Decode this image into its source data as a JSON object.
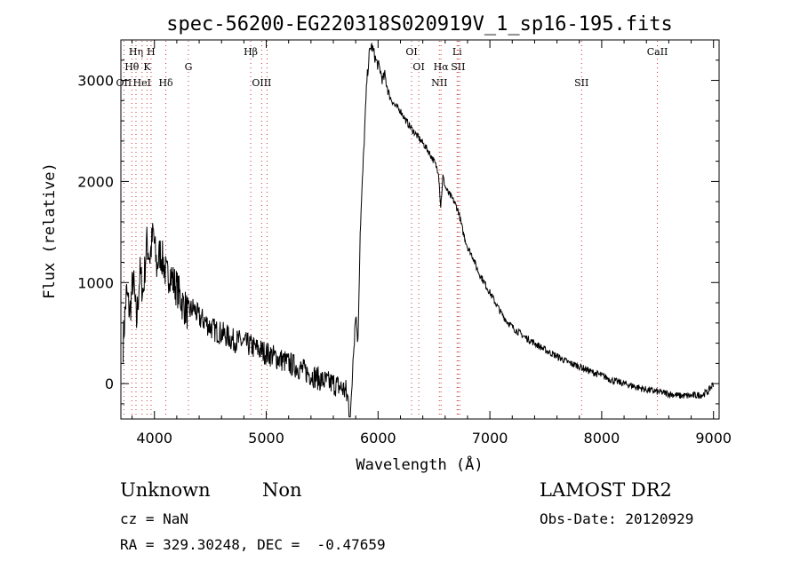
{
  "chart_data": {
    "type": "line",
    "title": "spec-56200-EG220318S020919V_1_sp16-195.fits",
    "xlabel": "Wavelength (Å)",
    "ylabel": "Flux (relative)",
    "xlim": [
      3700,
      9050
    ],
    "ylim": [
      -350,
      3400
    ],
    "xticks": [
      4000,
      5000,
      6000,
      7000,
      8000,
      9000
    ],
    "yticks": [
      0,
      1000,
      2000,
      3000
    ],
    "grid": false,
    "line_color": "#000000",
    "marker_color": "#cc3333",
    "series": [
      {
        "x": [
          3720,
          3750,
          3780,
          3810,
          3840,
          3870,
          3900,
          3930,
          3960,
          3990,
          4020,
          4050,
          4080,
          4110,
          4140,
          4170,
          4200,
          4250,
          4300,
          4350,
          4400,
          4450,
          4500,
          4550,
          4600,
          4650,
          4700,
          4750,
          4800,
          4850,
          4900,
          4950,
          5000,
          5050,
          5100,
          5150,
          5200,
          5250,
          5300,
          5350,
          5400,
          5450,
          5500,
          5550,
          5600,
          5650,
          5700,
          5730,
          5750,
          5760,
          5780,
          5800,
          5820,
          5840,
          5860,
          5880,
          5900,
          5920,
          5940,
          5960,
          5980,
          6000,
          6020,
          6040,
          6060,
          6080,
          6100,
          6150,
          6200,
          6250,
          6300,
          6350,
          6400,
          6450,
          6500,
          6540,
          6560,
          6580,
          6600,
          6620,
          6650,
          6680,
          6720,
          6760,
          6800,
          6850,
          6880,
          6900,
          6950,
          7000,
          7050,
          7100,
          7150,
          7200,
          7300,
          7400,
          7500,
          7600,
          7700,
          7800,
          7900,
          8000,
          8100,
          8200,
          8300,
          8400,
          8500,
          8600,
          8700,
          8800,
          8900,
          8950,
          9000
        ],
        "y": [
          400,
          900,
          700,
          1050,
          600,
          1100,
          900,
          1400,
          1250,
          1500,
          1150,
          1300,
          1200,
          1050,
          1100,
          1000,
          950,
          800,
          700,
          750,
          650,
          620,
          560,
          520,
          500,
          470,
          430,
          420,
          400,
          380,
          350,
          330,
          300,
          280,
          250,
          230,
          200,
          180,
          150,
          120,
          90,
          60,
          30,
          10,
          0,
          -30,
          -60,
          -150,
          -300,
          -250,
          400,
          700,
          400,
          1500,
          2000,
          2500,
          3000,
          3250,
          3350,
          3280,
          3200,
          3150,
          3100,
          3000,
          3050,
          2950,
          2850,
          2750,
          2700,
          2600,
          2520,
          2450,
          2380,
          2300,
          2200,
          2100,
          1750,
          2050,
          1950,
          1900,
          1850,
          1800,
          1700,
          1500,
          1350,
          1250,
          1150,
          1100,
          1000,
          900,
          800,
          700,
          620,
          560,
          470,
          400,
          330,
          270,
          210,
          170,
          120,
          80,
          30,
          0,
          -30,
          -60,
          -80,
          -100,
          -120,
          -120,
          -110,
          -80,
          0
        ]
      }
    ],
    "line_markers": [
      {
        "x": 3727,
        "label": "OII",
        "row": 3
      },
      {
        "x": 3798,
        "label": "Hθ",
        "row": 2
      },
      {
        "x": 3835,
        "label": "Hη",
        "row": 1
      },
      {
        "x": 3889,
        "label": "HeI",
        "row": 3
      },
      {
        "x": 3934,
        "label": "K",
        "row": 2
      },
      {
        "x": 3970,
        "label": "H",
        "row": 1
      },
      {
        "x": 4102,
        "label": "Hδ",
        "row": 3
      },
      {
        "x": 4304,
        "label": "G",
        "row": 2
      },
      {
        "x": 4861,
        "label": "Hβ",
        "row": 1
      },
      {
        "x": 4959,
        "label": "OIII",
        "row": 3
      },
      {
        "x": 5007,
        "label": "",
        "row": 3
      },
      {
        "x": 6300,
        "label": "OI",
        "row": 1
      },
      {
        "x": 6364,
        "label": "OI",
        "row": 2
      },
      {
        "x": 6548,
        "label": "NII",
        "row": 3
      },
      {
        "x": 6563,
        "label": "Hα",
        "row": 2
      },
      {
        "x": 6707,
        "label": "Li",
        "row": 1
      },
      {
        "x": 6716,
        "label": "SII",
        "row": 2
      },
      {
        "x": 6731,
        "label": "",
        "row": 2
      },
      {
        "x": 7820,
        "label": "SII",
        "row": 3
      },
      {
        "x": 8498,
        "label": "CaII",
        "row": 1
      }
    ]
  },
  "info": {
    "class": "Unknown",
    "subclass": "Non",
    "survey": "LAMOST DR2",
    "cz": "cz = NaN",
    "obs_date": "Obs-Date: 20120929",
    "radec": "RA = 329.30248, DEC =  -0.47659"
  }
}
